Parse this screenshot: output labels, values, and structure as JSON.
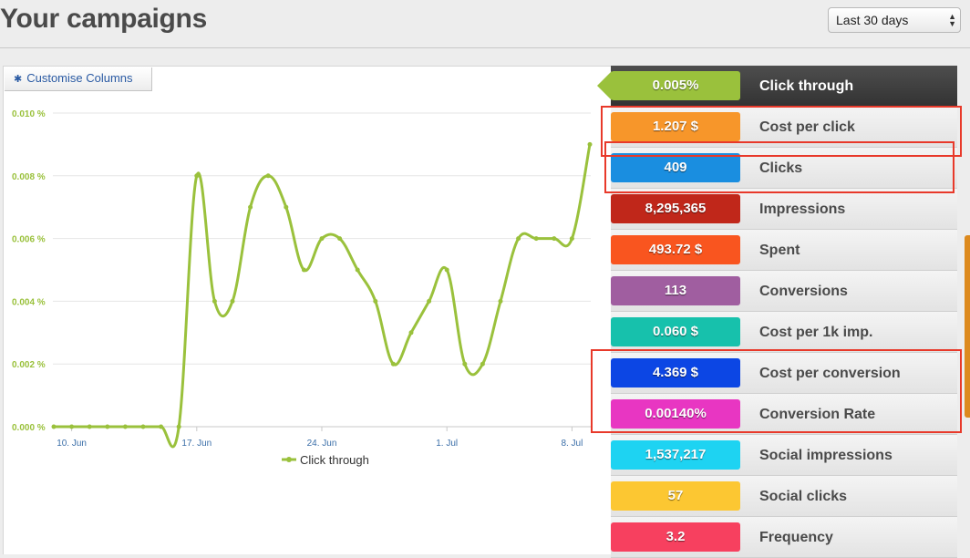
{
  "header": {
    "title": "Your campaigns",
    "period_select": "Last 30 days"
  },
  "toolbar": {
    "customise_label": "Customise Columns"
  },
  "chart_data": {
    "type": "line",
    "title": "",
    "xlabel": "",
    "ylabel": "",
    "x_tick_labels": [
      "10. Jun",
      "17. Jun",
      "24. Jun",
      "1. Jul",
      "8. Jul"
    ],
    "y_tick_labels": [
      "0.000 %",
      "0.002 %",
      "0.004 %",
      "0.006 %",
      "0.008 %",
      "0.010 %"
    ],
    "ylim": [
      0,
      0.01
    ],
    "x_range": [
      "2013-06-09",
      "2013-07-09"
    ],
    "series": [
      {
        "name": "Click through",
        "color": "#9ac13c",
        "x": [
          "2013-06-09",
          "2013-06-10",
          "2013-06-11",
          "2013-06-12",
          "2013-06-13",
          "2013-06-14",
          "2013-06-15",
          "2013-06-16",
          "2013-06-17",
          "2013-06-18",
          "2013-06-19",
          "2013-06-20",
          "2013-06-21",
          "2013-06-22",
          "2013-06-23",
          "2013-06-24",
          "2013-06-25",
          "2013-06-26",
          "2013-06-27",
          "2013-06-28",
          "2013-06-29",
          "2013-06-30",
          "2013-07-01",
          "2013-07-02",
          "2013-07-03",
          "2013-07-04",
          "2013-07-05",
          "2013-07-06",
          "2013-07-07",
          "2013-07-08",
          "2013-07-09"
        ],
        "values": [
          0,
          0,
          0,
          0,
          0,
          0,
          0,
          0,
          0.008,
          0.004,
          0.004,
          0.007,
          0.008,
          0.007,
          0.005,
          0.006,
          0.006,
          0.005,
          0.004,
          0.002,
          0.003,
          0.004,
          0.005,
          0.002,
          0.002,
          0.004,
          0.006,
          0.006,
          0.006,
          0.006,
          0.009
        ]
      }
    ],
    "legend_position": "bottom-center",
    "grid": true
  },
  "metrics": [
    {
      "value": "0.005%",
      "label": "Click through",
      "color": "#9ac13c",
      "active": true
    },
    {
      "value": "1.207 $",
      "label": "Cost per click",
      "color": "#f7962a"
    },
    {
      "value": "409",
      "label": "Clicks",
      "color": "#1a8ee0"
    },
    {
      "value": "8,295,365",
      "label": "Impressions",
      "color": "#c0271a"
    },
    {
      "value": "493.72 $",
      "label": "Spent",
      "color": "#f9551f"
    },
    {
      "value": "113",
      "label": "Conversions",
      "color": "#a05ea0"
    },
    {
      "value": "0.060 $",
      "label": "Cost per 1k imp.",
      "color": "#17c1ac"
    },
    {
      "value": "4.369 $",
      "label": "Cost per conversion",
      "color": "#0c46e4"
    },
    {
      "value": "0.00140%",
      "label": "Conversion Rate",
      "color": "#e836c2"
    },
    {
      "value": "1,537,217",
      "label": "Social impressions",
      "color": "#1ed3f2"
    },
    {
      "value": "57",
      "label": "Social clicks",
      "color": "#fcc732"
    },
    {
      "value": "3.2",
      "label": "Frequency",
      "color": "#f7405f"
    }
  ]
}
